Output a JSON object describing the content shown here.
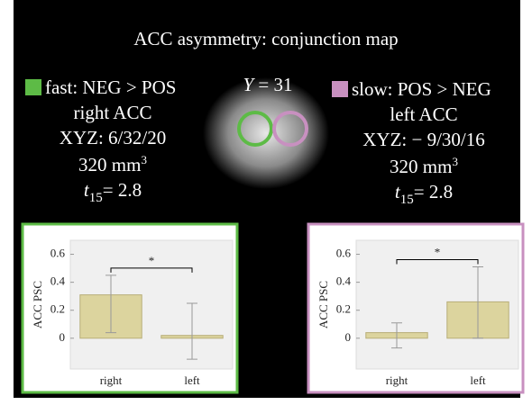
{
  "title": "ACC asymmetry: conjunction map",
  "image_label": {
    "symbol": "Y",
    "text": "= 31"
  },
  "conditions": [
    {
      "name": "fast: NEG > POS",
      "color": "#5dbb46",
      "region": "right ACC",
      "coordinates": "XYZ: 6/32/20",
      "volume": "320 mm",
      "volume_exponent": "3",
      "stat_symbol": "t",
      "stat_df": "15",
      "stat_text": "= 2.8"
    },
    {
      "name": "slow: POS > NEG",
      "color": "#c890c0",
      "region": "left ACC",
      "coordinates": "XYZ: − 9/30/16",
      "volume": "320 mm",
      "volume_exponent": "3",
      "stat_symbol": "t",
      "stat_df": "15",
      "stat_text": "= 2.8"
    }
  ],
  "chart_data": [
    {
      "type": "bar",
      "ylabel": "ACC PSC",
      "categories": [
        "right",
        "left"
      ],
      "values": [
        0.31,
        0.02
      ],
      "error_ranges": [
        [
          0.04,
          0.45
        ],
        [
          -0.15,
          0.25
        ]
      ],
      "color": "#dcd49e",
      "annotation": "*",
      "ylim": [
        -0.22,
        0.7
      ],
      "yticks": [
        0,
        0.2,
        0.4,
        0.6
      ]
    },
    {
      "type": "bar",
      "ylabel": "ACC PSC",
      "categories": [
        "right",
        "left"
      ],
      "values": [
        0.04,
        0.26
      ],
      "error_ranges": [
        [
          -0.07,
          0.11
        ],
        [
          0,
          0.51
        ]
      ],
      "color": "#dcd49e",
      "annotation": "*",
      "ylim": [
        -0.22,
        0.7
      ],
      "yticks": [
        0,
        0.2,
        0.4,
        0.6
      ]
    }
  ]
}
